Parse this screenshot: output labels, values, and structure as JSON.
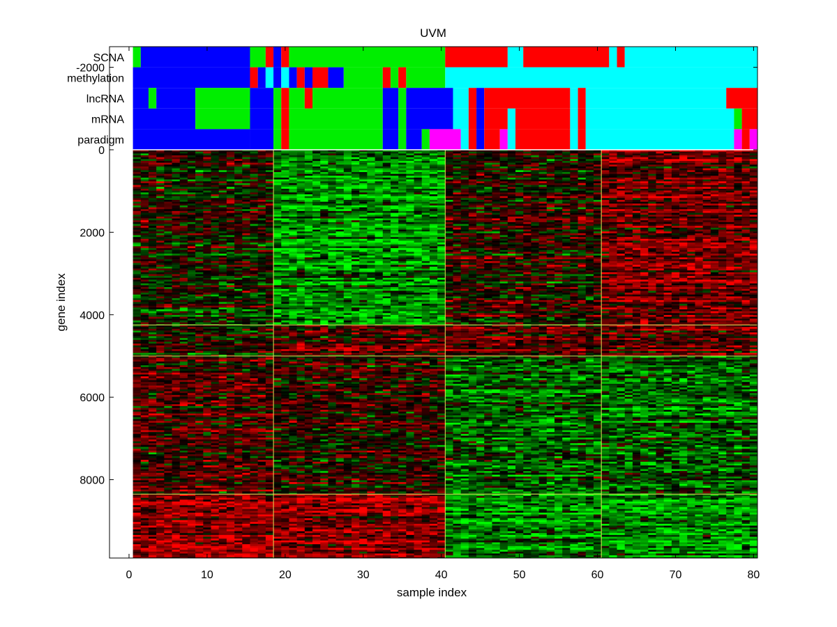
{
  "chart_data": {
    "type": "heatmap",
    "title": "UVM",
    "xlabel": "sample index",
    "ylabel": "gene index",
    "xlim": [
      -2.5,
      80.5
    ],
    "ylim": [
      -2500,
      9900
    ],
    "x_ticks": [
      0,
      10,
      20,
      30,
      40,
      50,
      60,
      70,
      80
    ],
    "y_ticks": [
      -2000,
      0,
      2000,
      4000,
      6000,
      8000
    ],
    "n_samples": 80,
    "n_genes": 9900,
    "track_labels": [
      "SCNA",
      "methylation",
      "lncRNA",
      "mRNA",
      "paradigm"
    ],
    "cluster_colors": {
      "1": "#00ee00",
      "2": "#0000ff",
      "3": "#ff0000",
      "4": "#00ffff",
      "5": "#ff00ff"
    },
    "tracks": [
      {
        "name": "SCNA",
        "runs": [
          [
            1,
            1,
            1
          ],
          [
            2,
            15,
            2
          ],
          [
            16,
            17,
            1
          ],
          [
            18,
            18,
            3
          ],
          [
            19,
            19,
            2
          ],
          [
            20,
            20,
            3
          ],
          [
            21,
            40,
            1
          ],
          [
            41,
            48,
            3
          ],
          [
            49,
            50,
            4
          ],
          [
            51,
            61,
            3
          ],
          [
            62,
            62,
            4
          ],
          [
            63,
            63,
            3
          ],
          [
            64,
            80,
            4
          ]
        ]
      },
      {
        "name": "methylation",
        "runs": [
          [
            1,
            15,
            2
          ],
          [
            16,
            16,
            3
          ],
          [
            17,
            17,
            2
          ],
          [
            18,
            18,
            4
          ],
          [
            19,
            19,
            2
          ],
          [
            20,
            20,
            4
          ],
          [
            21,
            21,
            2
          ],
          [
            22,
            22,
            3
          ],
          [
            23,
            23,
            2
          ],
          [
            24,
            25,
            3
          ],
          [
            26,
            27,
            2
          ],
          [
            28,
            32,
            1
          ],
          [
            33,
            33,
            3
          ],
          [
            34,
            34,
            1
          ],
          [
            35,
            35,
            3
          ],
          [
            36,
            40,
            1
          ],
          [
            41,
            80,
            4
          ]
        ]
      },
      {
        "name": "lncRNA",
        "runs": [
          [
            1,
            2,
            2
          ],
          [
            3,
            3,
            1
          ],
          [
            4,
            8,
            2
          ],
          [
            9,
            15,
            1
          ],
          [
            16,
            18,
            2
          ],
          [
            19,
            19,
            1
          ],
          [
            20,
            20,
            3
          ],
          [
            21,
            22,
            1
          ],
          [
            23,
            23,
            3
          ],
          [
            24,
            32,
            1
          ],
          [
            33,
            34,
            2
          ],
          [
            35,
            35,
            1
          ],
          [
            36,
            41,
            2
          ],
          [
            42,
            43,
            4
          ],
          [
            44,
            44,
            3
          ],
          [
            45,
            45,
            2
          ],
          [
            46,
            56,
            3
          ],
          [
            57,
            57,
            4
          ],
          [
            58,
            58,
            3
          ],
          [
            59,
            76,
            4
          ],
          [
            77,
            80,
            3
          ]
        ]
      },
      {
        "name": "mRNA",
        "runs": [
          [
            1,
            8,
            2
          ],
          [
            9,
            15,
            1
          ],
          [
            16,
            18,
            2
          ],
          [
            19,
            19,
            1
          ],
          [
            20,
            20,
            3
          ],
          [
            21,
            32,
            1
          ],
          [
            33,
            34,
            2
          ],
          [
            35,
            35,
            1
          ],
          [
            36,
            41,
            2
          ],
          [
            42,
            43,
            4
          ],
          [
            44,
            44,
            3
          ],
          [
            45,
            45,
            2
          ],
          [
            46,
            48,
            3
          ],
          [
            49,
            49,
            4
          ],
          [
            50,
            56,
            3
          ],
          [
            57,
            57,
            4
          ],
          [
            58,
            58,
            3
          ],
          [
            59,
            77,
            4
          ],
          [
            78,
            78,
            1
          ],
          [
            79,
            80,
            3
          ]
        ]
      },
      {
        "name": "paradigm",
        "runs": [
          [
            1,
            15,
            2
          ],
          [
            16,
            18,
            2
          ],
          [
            19,
            19,
            1
          ],
          [
            20,
            20,
            3
          ],
          [
            21,
            32,
            1
          ],
          [
            33,
            34,
            2
          ],
          [
            35,
            35,
            1
          ],
          [
            36,
            37,
            2
          ],
          [
            38,
            38,
            1
          ],
          [
            39,
            42,
            5
          ],
          [
            43,
            43,
            4
          ],
          [
            44,
            44,
            3
          ],
          [
            45,
            45,
            2
          ],
          [
            46,
            47,
            3
          ],
          [
            48,
            48,
            5
          ],
          [
            49,
            49,
            4
          ],
          [
            50,
            56,
            3
          ],
          [
            57,
            57,
            4
          ],
          [
            58,
            58,
            3
          ],
          [
            59,
            77,
            4
          ],
          [
            78,
            78,
            5
          ],
          [
            79,
            79,
            3
          ],
          [
            80,
            80,
            5
          ]
        ]
      }
    ],
    "sample_group_boundaries": [
      18.5,
      40.5,
      60.5
    ],
    "gene_group_boundaries": [
      4250,
      5000,
      8350
    ],
    "heatmap_blocks": [
      {
        "samples": [
          1,
          18
        ],
        "genes": [
          0,
          4250
        ],
        "mean": 0.0
      },
      {
        "samples": [
          19,
          40
        ],
        "genes": [
          0,
          4250
        ],
        "mean": -0.55
      },
      {
        "samples": [
          41,
          60
        ],
        "genes": [
          0,
          4250
        ],
        "mean": 0.1
      },
      {
        "samples": [
          61,
          80
        ],
        "genes": [
          0,
          4250
        ],
        "mean": 0.45
      },
      {
        "samples": [
          1,
          18
        ],
        "genes": [
          4250,
          5000
        ],
        "mean": 0.0
      },
      {
        "samples": [
          19,
          40
        ],
        "genes": [
          4250,
          5000
        ],
        "mean": 0.25
      },
      {
        "samples": [
          41,
          60
        ],
        "genes": [
          4250,
          5000
        ],
        "mean": 0.35
      },
      {
        "samples": [
          61,
          80
        ],
        "genes": [
          4250,
          5000
        ],
        "mean": 0.35
      },
      {
        "samples": [
          1,
          18
        ],
        "genes": [
          5000,
          8350
        ],
        "mean": 0.3
      },
      {
        "samples": [
          19,
          40
        ],
        "genes": [
          5000,
          8350
        ],
        "mean": 0.1
      },
      {
        "samples": [
          41,
          60
        ],
        "genes": [
          5000,
          8350
        ],
        "mean": -0.35
      },
      {
        "samples": [
          61,
          80
        ],
        "genes": [
          5000,
          8350
        ],
        "mean": -0.35
      },
      {
        "samples": [
          1,
          18
        ],
        "genes": [
          8350,
          9900
        ],
        "mean": 0.55
      },
      {
        "samples": [
          19,
          40
        ],
        "genes": [
          8350,
          9900
        ],
        "mean": 0.55
      },
      {
        "samples": [
          41,
          60
        ],
        "genes": [
          8350,
          9900
        ],
        "mean": -0.5
      },
      {
        "samples": [
          61,
          80
        ],
        "genes": [
          8350,
          9900
        ],
        "mean": -0.5
      }
    ],
    "colormap": {
      "low": "#00ff00",
      "mid": "#000000",
      "high": "#ff0000"
    },
    "separator_color": "#e6e65a"
  }
}
